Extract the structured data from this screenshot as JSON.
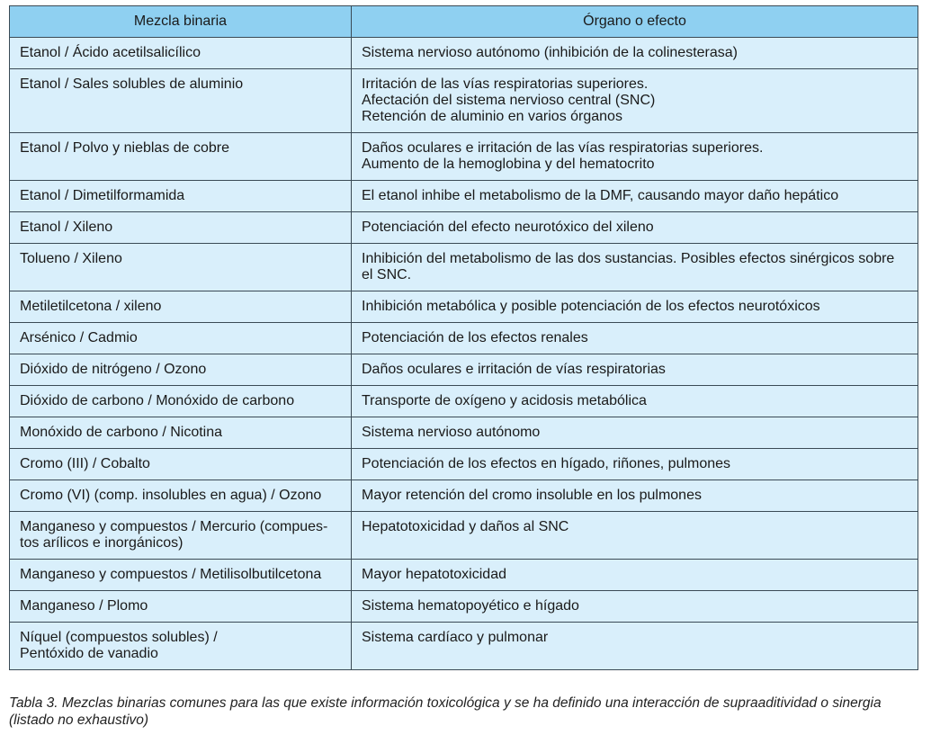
{
  "table": {
    "headers": [
      "Mezcla binaria",
      "Órgano o efecto"
    ],
    "rows": [
      [
        "Etanol / Ácido acetilsalicílico",
        "Sistema nervioso autónomo (inhibición de la colinesterasa)"
      ],
      [
        "Etanol / Sales solubles de aluminio",
        "Irritación de las vías respiratorias superiores.\nAfectación del sistema nervioso central (SNC)\nRetención de aluminio en varios órganos"
      ],
      [
        "Etanol / Polvo y nieblas de cobre",
        "Daños oculares e irritación de las vías respiratorias superiores.\nAumento de la hemoglobina y del hematocrito"
      ],
      [
        "Etanol / Dimetilformamida",
        "El etanol inhibe el metabolismo de la DMF, causando mayor daño hepático"
      ],
      [
        "Etanol / Xileno",
        "Potenciación del efecto neurotóxico del xileno"
      ],
      [
        "Tolueno / Xileno",
        "Inhibición del metabolismo de las dos sustancias. Posibles efectos sinérgicos sobre el SNC."
      ],
      [
        "Metiletilcetona / xileno",
        "Inhibición metabólica y posible potenciación de los efectos neurotóxicos"
      ],
      [
        "Arsénico / Cadmio",
        "Potenciación de los efectos renales"
      ],
      [
        "Dióxido de nitrógeno / Ozono",
        "Daños oculares e irritación de vías respiratorias"
      ],
      [
        "Dióxido de carbono / Monóxido de carbono",
        "Transporte de oxígeno y acidosis metabólica"
      ],
      [
        "Monóxido de carbono / Nicotina",
        "Sistema nervioso autónomo"
      ],
      [
        "Cromo (III) / Cobalto",
        "Potenciación de los efectos en hígado, riñones, pulmones"
      ],
      [
        "Cromo (VI) (comp. insolubles en agua) / Ozono",
        "Mayor retención del cromo insoluble en los pulmones"
      ],
      [
        "Manganeso y compuestos / Mercurio (compues-\ntos arílicos e inorgánicos)",
        "Hepatotoxicidad y daños al SNC"
      ],
      [
        "Manganeso y compuestos / Metilisolbutilcetona",
        "Mayor hepatotoxicidad"
      ],
      [
        "Manganeso / Plomo",
        "Sistema hematopoyético e hígado"
      ],
      [
        "Níquel (compuestos solubles) /\nPentóxido de vanadio",
        "Sistema cardíaco y pulmonar"
      ]
    ]
  },
  "caption": "Tabla 3. Mezclas binarias comunes para las que existe información toxicológica y se ha definido una interacción de supraaditividad o sinergia (listado no exhaustivo)",
  "colors": {
    "header_bg": "#8fd0f1",
    "cell_bg": "#d9effb",
    "border": "#3a4a55"
  }
}
